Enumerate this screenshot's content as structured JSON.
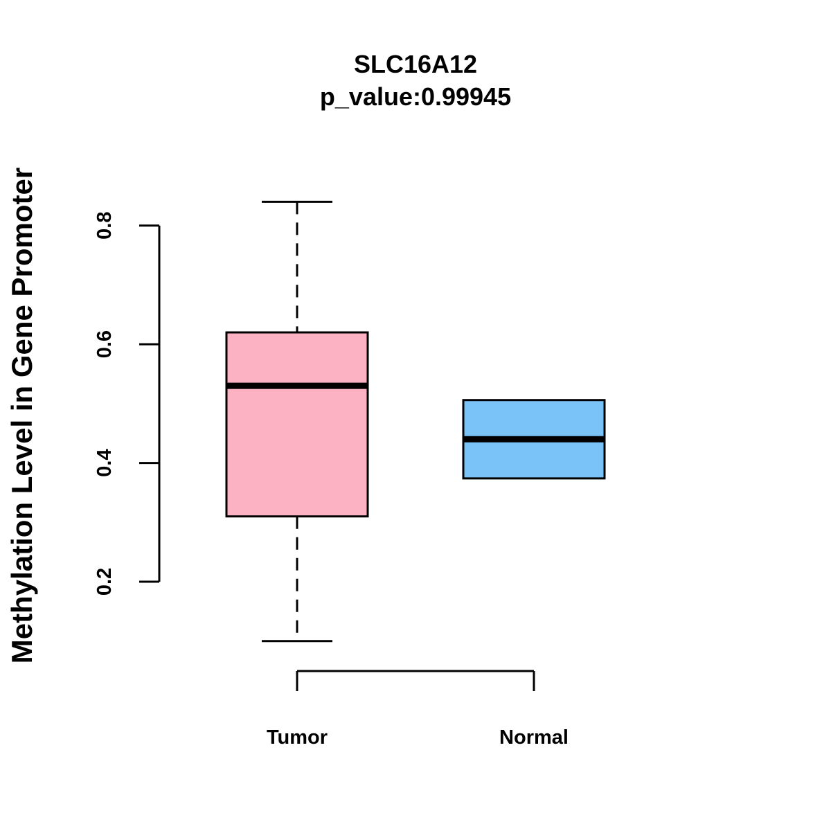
{
  "chart_data": {
    "type": "box",
    "title": "SLC16A12",
    "subtitle": "p_value:0.99945",
    "xlabel": "",
    "ylabel": "Methylation Level in Gene Promoter",
    "ylim": [
      0.06,
      0.9
    ],
    "yticks": [
      0.2,
      0.4,
      0.6,
      0.8
    ],
    "ytick_labels": [
      "0.2",
      "0.4",
      "0.6",
      "0.8"
    ],
    "grid": false,
    "groups": [
      {
        "name": "Tumor",
        "color": "#FDB2C4",
        "whisker_low": 0.1,
        "q1": 0.31,
        "median": 0.53,
        "q3": 0.62,
        "whisker_high": 0.84
      },
      {
        "name": "Normal",
        "color": "#7AC3F9",
        "whisker_low": 0.374,
        "q1": 0.374,
        "median": 0.44,
        "q3": 0.506,
        "whisker_high": 0.506
      }
    ]
  }
}
